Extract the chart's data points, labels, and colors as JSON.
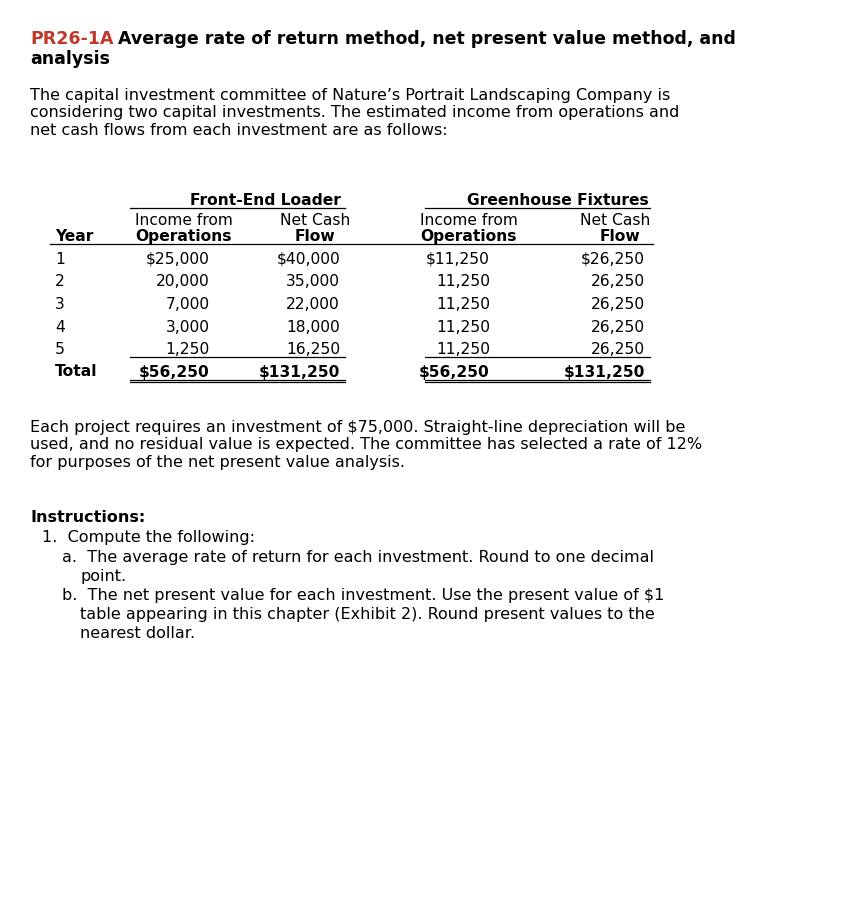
{
  "title_red": "PR26-1A",
  "title_black": "   Average rate of return method, net present value method, and\nanalysis",
  "intro_text": "The capital investment committee of Nature’s Portrait Landscaping Company is\nconsidering two capital investments. The estimated income from operations and\nnet cash flows from each investment are as follows:",
  "col_header1": "Front-End Loader",
  "col_header2": "Greenhouse Fixtures",
  "years": [
    "1",
    "2",
    "3",
    "4",
    "5",
    "Total"
  ],
  "fel_income": [
    "$25,000",
    "20,000",
    "7,000",
    "3,000",
    "1,250",
    "$56,250"
  ],
  "fel_cashflow": [
    "$40,000",
    "35,000",
    "22,000",
    "18,000",
    "16,250",
    "$131,250"
  ],
  "gf_income": [
    "$11,250",
    "11,250",
    "11,250",
    "11,250",
    "11,250",
    "$56,250"
  ],
  "gf_cashflow": [
    "$26,250",
    "26,250",
    "26,250",
    "26,250",
    "26,250",
    "$131,250"
  ],
  "para2": "Each project requires an investment of $75,000. Straight-line depreciation will be\nused, and no residual value is expected. The committee has selected a rate of 12%\nfor purposes of the net present value analysis.",
  "bg_color": "#ffffff",
  "text_color": "#000000",
  "red_color": "#c0392b",
  "fs_title": 12.5,
  "fs_body": 11.5,
  "fs_table": 11.2
}
